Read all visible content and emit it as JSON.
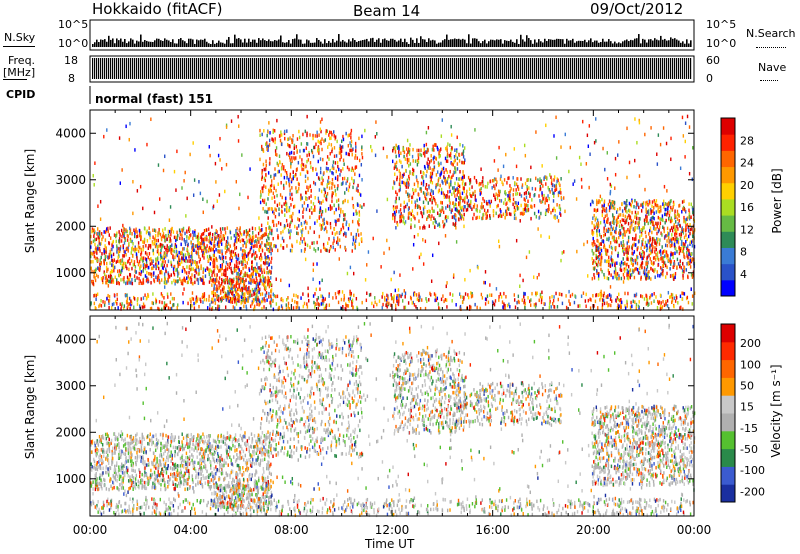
{
  "header": {
    "title": "Hokkaido (fitACF)",
    "beam": "Beam 14",
    "date": "09/Oct/2012"
  },
  "nsky_panel": {
    "left_label": "N.Sky",
    "right_label": "N.Search",
    "left_ticks": [
      "10^5",
      "10^0"
    ],
    "right_ticks": [
      "10^5",
      "10^0"
    ]
  },
  "freq_panel": {
    "left_label_top": "Freq.",
    "left_label_unit": "[MHz]",
    "left_ticks": [
      "18",
      "8"
    ],
    "right_ticks": [
      "60",
      "0"
    ],
    "right_label": "Nave"
  },
  "cpid_panel": {
    "label": "CPID",
    "mode_text": "normal (fast) 151"
  },
  "chart_data": [
    {
      "type": "heatmap",
      "name": "power",
      "ylabel": "Slant Range [km]",
      "y_ticks": [
        "1000",
        "2000",
        "3000",
        "4000"
      ],
      "ylim": [
        200,
        4500
      ],
      "colorbar": {
        "label": "Power [dB]",
        "ticks": [
          "4",
          "8",
          "12",
          "16",
          "20",
          "24",
          "28"
        ],
        "colors": [
          "#0000ff",
          "#2a52c8",
          "#3a7bd5",
          "#2e8b57",
          "#66bb44",
          "#aadd22",
          "#ffd000",
          "#ff9900",
          "#ff6600",
          "#ff2200",
          "#dd0000"
        ]
      }
    },
    {
      "type": "heatmap",
      "name": "velocity",
      "ylabel": "Slant Range [km]",
      "y_ticks": [
        "1000",
        "2000",
        "3000",
        "4000"
      ],
      "ylim": [
        200,
        4500
      ],
      "xlabel": "Time UT",
      "x_ticks": [
        "00:00",
        "04:00",
        "08:00",
        "12:00",
        "16:00",
        "20:00",
        "00:00"
      ],
      "colorbar": {
        "label": "Velocity [m s⁻¹]",
        "ticks": [
          "200",
          "100",
          "50",
          "15",
          "-15",
          "-50",
          "-100",
          "-200"
        ],
        "colors": [
          "#1a2fa0",
          "#3b5bd0",
          "#2a8a4a",
          "#55c030",
          "#b0b0b0",
          "#c8c8c8",
          "#ff9900",
          "#ff6600",
          "#ff2a00",
          "#dd0000"
        ]
      }
    }
  ]
}
